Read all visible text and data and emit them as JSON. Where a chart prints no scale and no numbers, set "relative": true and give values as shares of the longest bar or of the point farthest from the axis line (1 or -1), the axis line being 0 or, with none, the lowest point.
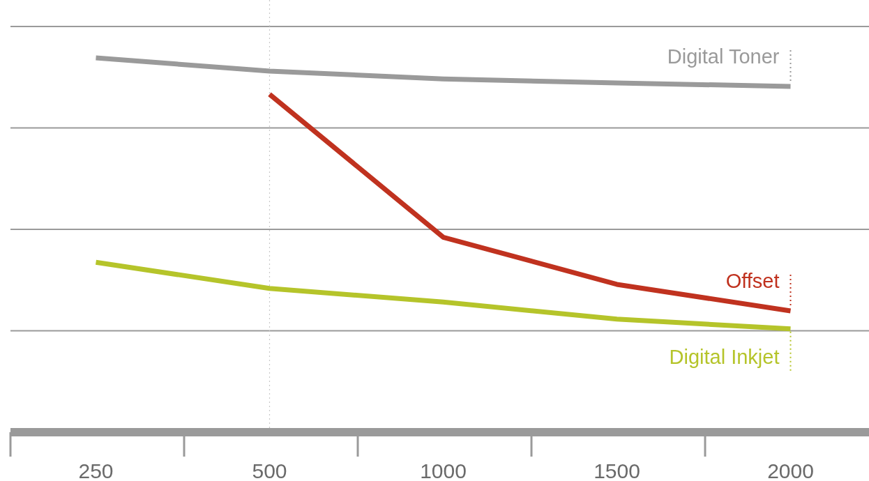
{
  "chart_data": {
    "type": "line",
    "relative": true,
    "grid": "y",
    "categories": [
      "250",
      "500",
      "1000",
      "1500",
      "2000"
    ],
    "series": [
      {
        "name": "Digital Toner",
        "color": "#9a9a9a",
        "values": [
          1,
          0.965,
          0.944,
          0.933,
          0.924
        ]
      },
      {
        "name": "Offset",
        "color": "#c0321f",
        "values": [
          null,
          0.903,
          0.521,
          0.395,
          0.324
        ]
      },
      {
        "name": "Digital Inkjet",
        "color": "#b5c42a",
        "values": [
          0.454,
          0.384,
          0.348,
          0.302,
          0.276
        ]
      }
    ],
    "ref_lines": [
      {
        "axis": "x",
        "value": "500",
        "color": "#c8c8c8",
        "line_style": "dotted"
      }
    ],
    "line_style": "solid",
    "marker": "none",
    "legend": "right"
  }
}
